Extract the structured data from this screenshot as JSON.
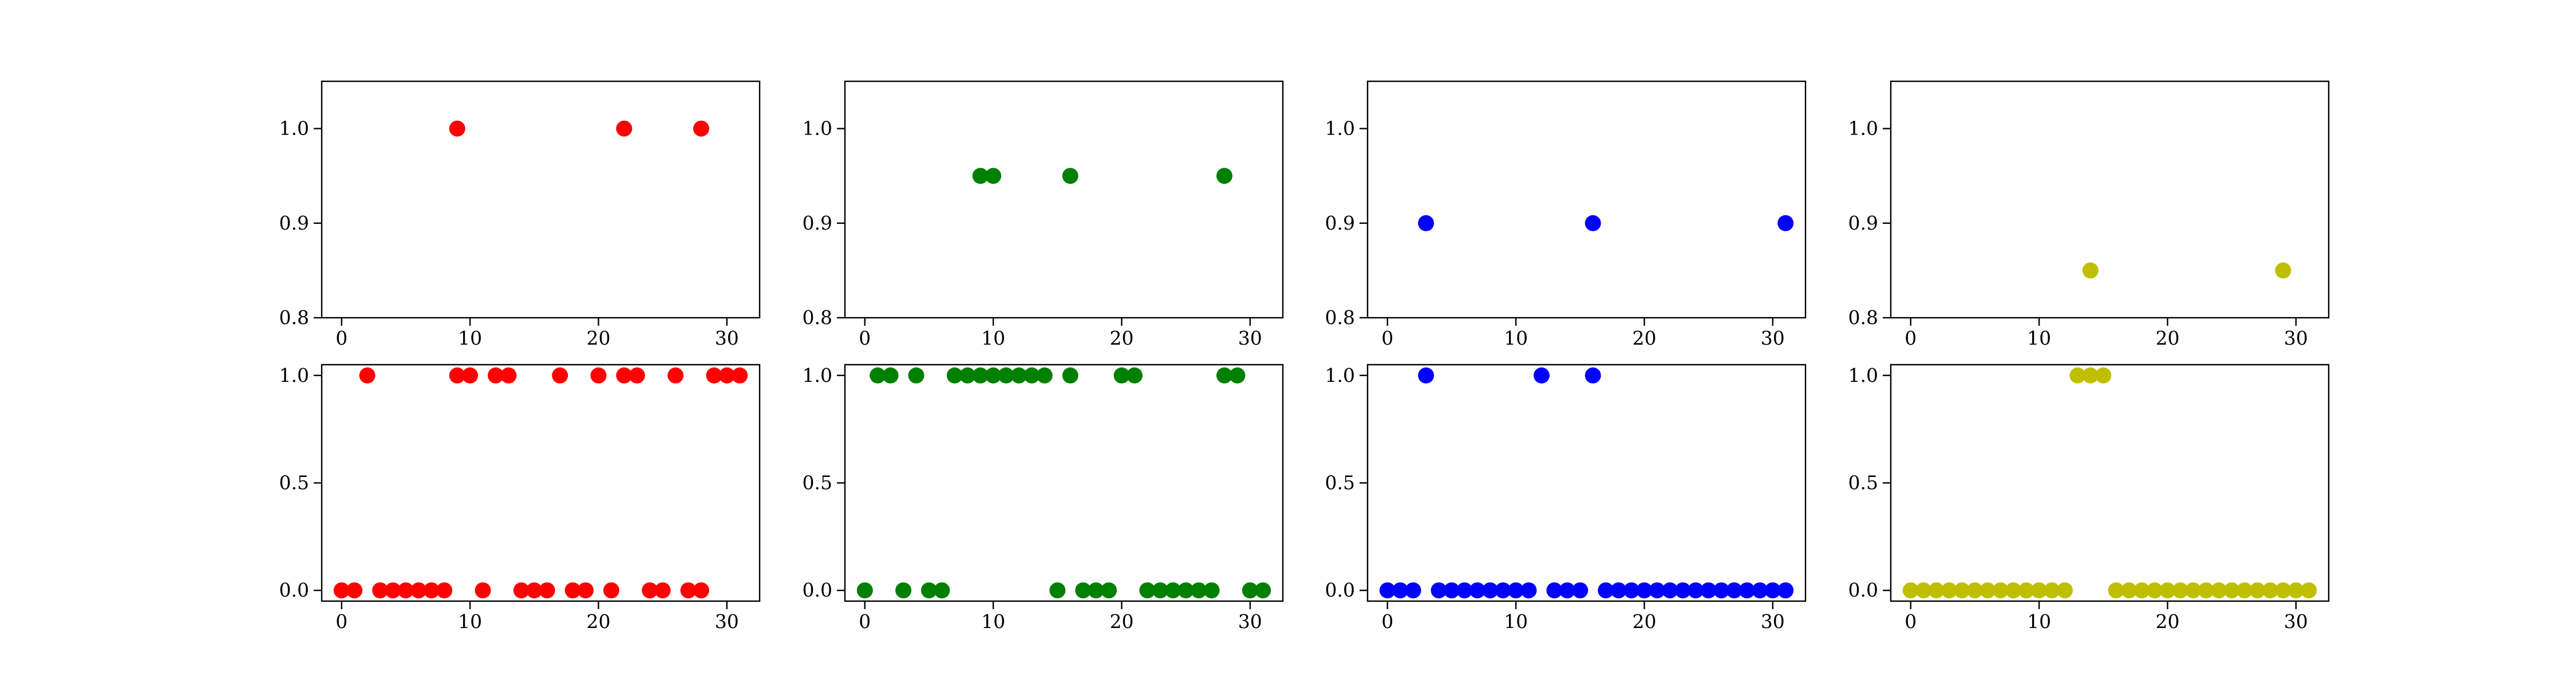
{
  "chart_data": [
    {
      "type": "scatter",
      "row": 0,
      "col": 0,
      "color": "#ff0000",
      "xlim": [
        -1.55,
        32.55
      ],
      "ylim": [
        0.8,
        1.05
      ],
      "xticks": [
        0,
        10,
        20,
        30
      ],
      "yticks": [
        0.8,
        0.9,
        1.0
      ],
      "xtick_labels": [
        "0",
        "10",
        "20",
        "30"
      ],
      "ytick_labels": [
        "0.8",
        "0.9",
        "1.0"
      ],
      "x": [
        9,
        22,
        28
      ],
      "y": [
        1.0,
        1.0,
        1.0
      ]
    },
    {
      "type": "scatter",
      "row": 0,
      "col": 1,
      "color": "#008000",
      "xlim": [
        -1.55,
        32.55
      ],
      "ylim": [
        0.8,
        1.05
      ],
      "xticks": [
        0,
        10,
        20,
        30
      ],
      "yticks": [
        0.8,
        0.9,
        1.0
      ],
      "xtick_labels": [
        "0",
        "10",
        "20",
        "30"
      ],
      "ytick_labels": [
        "0.8",
        "0.9",
        "1.0"
      ],
      "x": [
        9,
        10,
        16,
        28
      ],
      "y": [
        0.95,
        0.95,
        0.95,
        0.95
      ]
    },
    {
      "type": "scatter",
      "row": 0,
      "col": 2,
      "color": "#0000ff",
      "xlim": [
        -1.55,
        32.55
      ],
      "ylim": [
        0.8,
        1.05
      ],
      "xticks": [
        0,
        10,
        20,
        30
      ],
      "yticks": [
        0.8,
        0.9,
        1.0
      ],
      "xtick_labels": [
        "0",
        "10",
        "20",
        "30"
      ],
      "ytick_labels": [
        "0.8",
        "0.9",
        "1.0"
      ],
      "x": [
        3,
        16,
        31
      ],
      "y": [
        0.9,
        0.9,
        0.9
      ]
    },
    {
      "type": "scatter",
      "row": 0,
      "col": 3,
      "color": "#bfbf00",
      "xlim": [
        -1.55,
        32.55
      ],
      "ylim": [
        0.8,
        1.05
      ],
      "xticks": [
        0,
        10,
        20,
        30
      ],
      "yticks": [
        0.8,
        0.9,
        1.0
      ],
      "xtick_labels": [
        "0",
        "10",
        "20",
        "30"
      ],
      "ytick_labels": [
        "0.8",
        "0.9",
        "1.0"
      ],
      "x": [
        14,
        29
      ],
      "y": [
        0.85,
        0.85
      ]
    },
    {
      "type": "scatter",
      "row": 1,
      "col": 0,
      "color": "#ff0000",
      "xlim": [
        -1.55,
        32.55
      ],
      "ylim": [
        -0.05,
        1.05
      ],
      "xticks": [
        0,
        10,
        20,
        30
      ],
      "yticks": [
        0.0,
        0.5,
        1.0
      ],
      "xtick_labels": [
        "0",
        "10",
        "20",
        "30"
      ],
      "ytick_labels": [
        "0.0",
        "0.5",
        "1.0"
      ],
      "x": [
        0,
        1,
        2,
        3,
        4,
        5,
        6,
        7,
        8,
        9,
        10,
        11,
        12,
        13,
        14,
        15,
        16,
        17,
        18,
        19,
        20,
        21,
        22,
        23,
        24,
        25,
        26,
        27,
        28,
        29,
        30,
        31
      ],
      "y": [
        0,
        0,
        1,
        0,
        0,
        0,
        0,
        0,
        0,
        1,
        1,
        0,
        1,
        1,
        0,
        0,
        0,
        1,
        0,
        0,
        1,
        0,
        1,
        1,
        0,
        0,
        1,
        0,
        0,
        1,
        1,
        1
      ]
    },
    {
      "type": "scatter",
      "row": 1,
      "col": 1,
      "color": "#008000",
      "xlim": [
        -1.55,
        32.55
      ],
      "ylim": [
        -0.05,
        1.05
      ],
      "xticks": [
        0,
        10,
        20,
        30
      ],
      "yticks": [
        0.0,
        0.5,
        1.0
      ],
      "xtick_labels": [
        "0",
        "10",
        "20",
        "30"
      ],
      "ytick_labels": [
        "0.0",
        "0.5",
        "1.0"
      ],
      "x": [
        0,
        1,
        2,
        3,
        4,
        5,
        6,
        7,
        8,
        9,
        10,
        11,
        12,
        13,
        14,
        15,
        16,
        17,
        18,
        19,
        20,
        21,
        22,
        23,
        24,
        25,
        26,
        27,
        28,
        29,
        30,
        31
      ],
      "y": [
        0,
        1,
        1,
        0,
        1,
        0,
        0,
        1,
        1,
        1,
        1,
        1,
        1,
        1,
        1,
        0,
        1,
        0,
        0,
        0,
        1,
        1,
        0,
        0,
        0,
        0,
        0,
        0,
        1,
        1,
        0,
        0
      ]
    },
    {
      "type": "scatter",
      "row": 1,
      "col": 2,
      "color": "#0000ff",
      "xlim": [
        -1.55,
        32.55
      ],
      "ylim": [
        -0.05,
        1.05
      ],
      "xticks": [
        0,
        10,
        20,
        30
      ],
      "yticks": [
        0.0,
        0.5,
        1.0
      ],
      "xtick_labels": [
        "0",
        "10",
        "20",
        "30"
      ],
      "ytick_labels": [
        "0.0",
        "0.5",
        "1.0"
      ],
      "x": [
        0,
        1,
        2,
        3,
        4,
        5,
        6,
        7,
        8,
        9,
        10,
        11,
        12,
        13,
        14,
        15,
        16,
        17,
        18,
        19,
        20,
        21,
        22,
        23,
        24,
        25,
        26,
        27,
        28,
        29,
        30,
        31
      ],
      "y": [
        0,
        0,
        0,
        1,
        0,
        0,
        0,
        0,
        0,
        0,
        0,
        0,
        1,
        0,
        0,
        0,
        1,
        0,
        0,
        0,
        0,
        0,
        0,
        0,
        0,
        0,
        0,
        0,
        0,
        0,
        0,
        0
      ]
    },
    {
      "type": "scatter",
      "row": 1,
      "col": 3,
      "color": "#bfbf00",
      "xlim": [
        -1.55,
        32.55
      ],
      "ylim": [
        -0.05,
        1.05
      ],
      "xticks": [
        0,
        10,
        20,
        30
      ],
      "yticks": [
        0.0,
        0.5,
        1.0
      ],
      "xtick_labels": [
        "0",
        "10",
        "20",
        "30"
      ],
      "ytick_labels": [
        "0.0",
        "0.5",
        "1.0"
      ],
      "x": [
        0,
        1,
        2,
        3,
        4,
        5,
        6,
        7,
        8,
        9,
        10,
        11,
        12,
        13,
        14,
        15,
        16,
        17,
        18,
        19,
        20,
        21,
        22,
        23,
        24,
        25,
        26,
        27,
        28,
        29,
        30,
        31
      ],
      "y": [
        0,
        0,
        0,
        0,
        0,
        0,
        0,
        0,
        0,
        0,
        0,
        0,
        0,
        1,
        1,
        1,
        0,
        0,
        0,
        0,
        0,
        0,
        0,
        0,
        0,
        0,
        0,
        0,
        0,
        0,
        0,
        0
      ]
    }
  ]
}
